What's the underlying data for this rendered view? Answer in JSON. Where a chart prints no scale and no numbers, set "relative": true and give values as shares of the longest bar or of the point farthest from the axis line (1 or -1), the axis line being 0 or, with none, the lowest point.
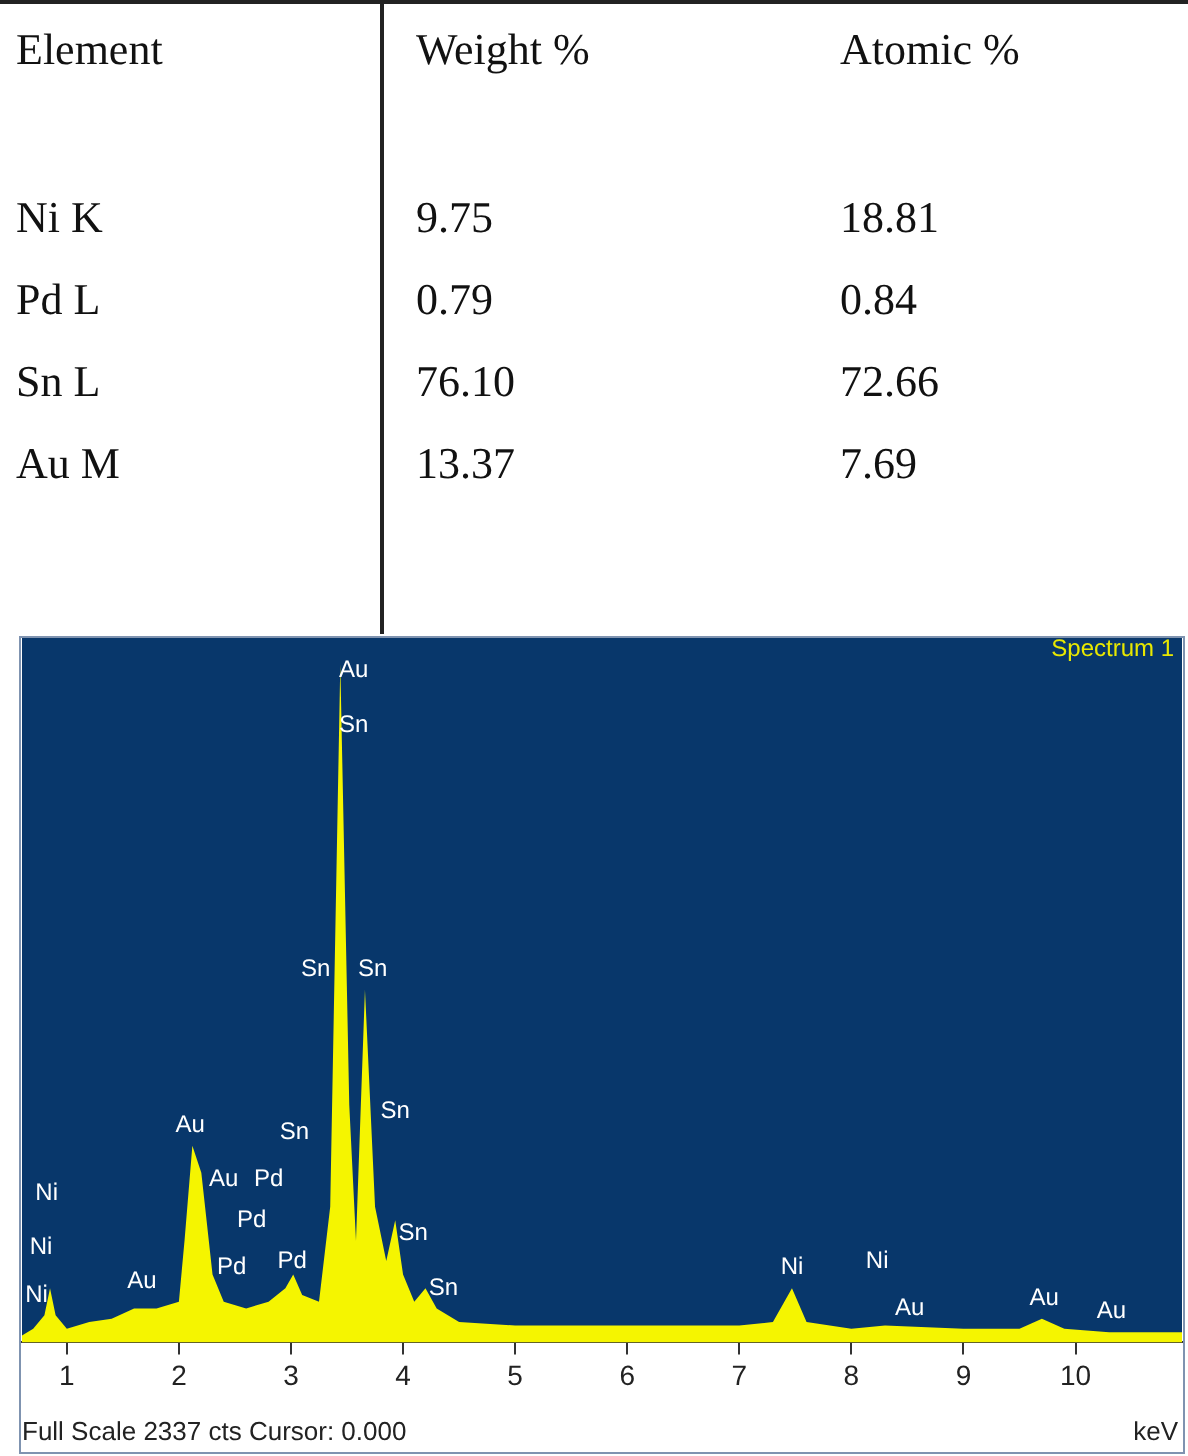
{
  "chart_data": [
    {
      "type": "other",
      "categories": [
        "Element",
        "Weight %",
        "Atomic %"
      ],
      "y_categories": [
        "Ni K",
        "Pd L",
        "Sn L",
        "Au M"
      ],
      "cell_labels": [
        [
          "9.75",
          "18.81"
        ],
        [
          "0.79",
          "0.84"
        ],
        [
          "76.10",
          "72.66"
        ],
        [
          "13.37",
          "7.69"
        ]
      ]
    },
    {
      "type": "area",
      "relative": true,
      "title": "Spectrum 1",
      "xlabel": "keV",
      "color": "#f5f500",
      "xlim": [
        0.6,
        10.95
      ],
      "xticks": [
        1,
        2,
        3,
        4,
        5,
        6,
        7,
        8,
        9,
        10
      ],
      "x": [
        0.6,
        0.7,
        0.8,
        0.85,
        0.9,
        1.0,
        1.2,
        1.4,
        1.6,
        1.8,
        2.0,
        2.05,
        2.12,
        2.2,
        2.3,
        2.4,
        2.6,
        2.8,
        2.95,
        3.02,
        3.1,
        3.25,
        3.35,
        3.44,
        3.52,
        3.58,
        3.66,
        3.75,
        3.85,
        3.93,
        4.0,
        4.1,
        4.2,
        4.3,
        4.5,
        5,
        6,
        7,
        7.3,
        7.47,
        7.6,
        8,
        8.3,
        9,
        9.5,
        9.7,
        9.9,
        10.3,
        10.95
      ],
      "values": [
        0.01,
        0.02,
        0.04,
        0.08,
        0.04,
        0.02,
        0.03,
        0.035,
        0.05,
        0.05,
        0.06,
        0.15,
        0.29,
        0.25,
        0.1,
        0.06,
        0.05,
        0.06,
        0.08,
        0.1,
        0.07,
        0.06,
        0.2,
        1,
        0.35,
        0.15,
        0.52,
        0.2,
        0.12,
        0.18,
        0.1,
        0.06,
        0.08,
        0.05,
        0.03,
        0.025,
        0.025,
        0.025,
        0.03,
        0.08,
        0.03,
        0.02,
        0.025,
        0.02,
        0.02,
        0.035,
        0.02,
        0.015,
        0.015
      ],
      "annotations": [
        "Au",
        "Sn",
        "Sn",
        "Sn",
        "Sn",
        "Sn",
        "Au",
        "Au",
        "Pd",
        "Pd",
        "Pd",
        "Pd",
        "Sn",
        "Sn",
        "Au",
        "Ni",
        "Ni",
        "Ni",
        "Ni",
        "Ni",
        "Au",
        "Au",
        "Au",
        "Full Scale 2337 cts Cursor: 0.000"
      ]
    }
  ]
}
